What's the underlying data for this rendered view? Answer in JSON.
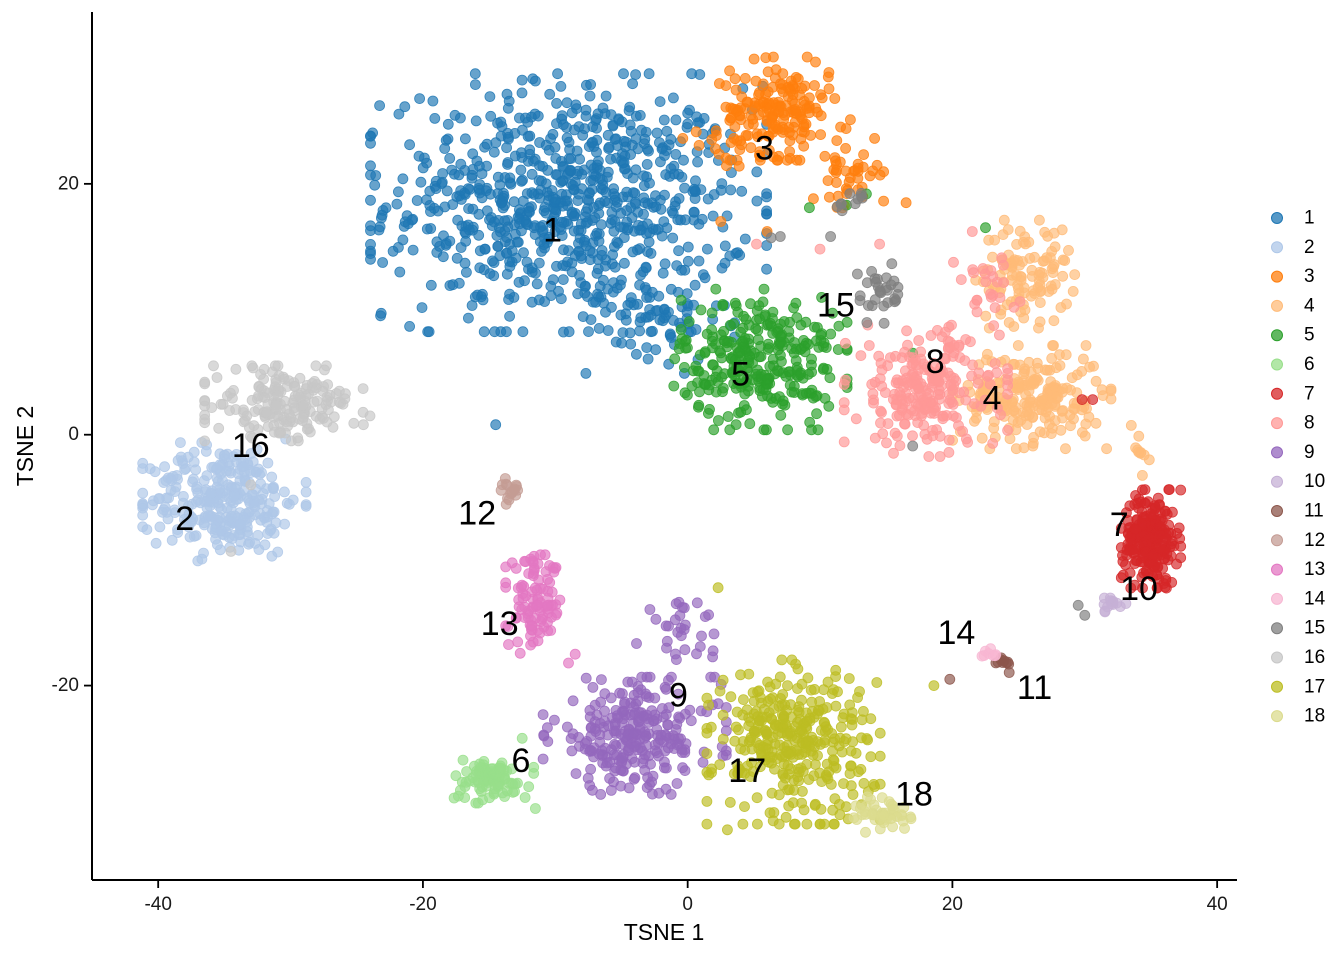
{
  "chart_data": {
    "type": "scatter",
    "xlabel": "TSNE 1",
    "ylabel": "TSNE 2",
    "xlim": [
      -45,
      41.5
    ],
    "ylim": [
      -35.5,
      33.7
    ],
    "x_ticks": [
      -40,
      -20,
      0,
      20,
      40
    ],
    "y_ticks": [
      -20,
      0,
      20
    ],
    "x_tick_labels": [
      "-40",
      "-20",
      "0",
      "20",
      "40"
    ],
    "y_tick_labels": [
      "-20",
      "0",
      "20"
    ],
    "grid": false,
    "legend_position": "right",
    "series": [
      {
        "name": "1",
        "color": "#1f77b4",
        "blobs": [
          {
            "cx": -9,
            "cy": 18.5,
            "sx": 8,
            "sy": 5.5,
            "n": 780
          },
          {
            "cx": -3,
            "cy": 9,
            "sx": 3.5,
            "sy": 2.2,
            "n": 70
          }
        ],
        "points": [
          [
            -11.5,
            28.2
          ],
          [
            -14.5,
            0.8
          ]
        ]
      },
      {
        "name": "2",
        "color": "#aec7e8",
        "blobs": [
          {
            "cx": -35,
            "cy": -5.2,
            "sx": 3.3,
            "sy": 2.6,
            "n": 300
          }
        ],
        "points": []
      },
      {
        "name": "3",
        "color": "#ff7f0e",
        "blobs": [
          {
            "cx": 7,
            "cy": 26,
            "sx": 2.2,
            "sy": 2.2,
            "n": 170
          },
          {
            "cx": 12,
            "cy": 21,
            "sx": 1.5,
            "sy": 2.2,
            "n": 45
          },
          {
            "cx": 3,
            "cy": 23,
            "sx": 1.8,
            "sy": 1.2,
            "n": 18
          }
        ],
        "points": [
          [
            2.5,
            17.0
          ],
          [
            6.0,
            16.2
          ],
          [
            16.5,
            18.5
          ],
          [
            2.4,
            28.0
          ]
        ]
      },
      {
        "name": "4",
        "color": "#ffbb78",
        "blobs": [
          {
            "cx": 26,
            "cy": 3,
            "sx": 3.2,
            "sy": 2.2,
            "n": 220
          },
          {
            "cx": 25.5,
            "cy": 12.8,
            "sx": 2.0,
            "sy": 2.3,
            "n": 110
          },
          {
            "cx": 34,
            "cy": -1.5,
            "sx": 0.5,
            "sy": 1.2,
            "n": 10
          }
        ],
        "points": []
      },
      {
        "name": "5",
        "color": "#2ca02c",
        "blobs": [
          {
            "cx": 5.5,
            "cy": 6,
            "sx": 3.5,
            "sy": 3.0,
            "n": 300
          }
        ],
        "points": [
          [
            13.5,
            19.2
          ],
          [
            12.0,
            18.3
          ],
          [
            9.2,
            18.1
          ],
          [
            17.0,
            6.5
          ],
          [
            22.5,
            16.5
          ]
        ]
      },
      {
        "name": "6",
        "color": "#98df8a",
        "blobs": [
          {
            "cx": -15,
            "cy": -27.5,
            "sx": 1.8,
            "sy": 1.0,
            "n": 90
          }
        ],
        "points": [
          [
            -12.5,
            -24.2
          ],
          [
            -11.5,
            -29.8
          ]
        ]
      },
      {
        "name": "7",
        "color": "#d62728",
        "blobs": [
          {
            "cx": 35,
            "cy": -8.3,
            "sx": 1.2,
            "sy": 2.1,
            "n": 220
          }
        ],
        "points": [
          [
            29.8,
            2.8
          ],
          [
            30.6,
            2.8
          ]
        ]
      },
      {
        "name": "8",
        "color": "#ff9896",
        "blobs": [
          {
            "cx": 18,
            "cy": 3.5,
            "sx": 3.3,
            "sy": 2.8,
            "n": 230
          },
          {
            "cx": 22.5,
            "cy": 11.5,
            "sx": 1.4,
            "sy": 1.5,
            "n": 25
          }
        ],
        "points": [
          [
            5.2,
            15.2
          ],
          [
            10.0,
            14.8
          ],
          [
            14.5,
            15.2
          ],
          [
            21.5,
            16.2
          ]
        ]
      },
      {
        "name": "9",
        "color": "#9467bd",
        "blobs": [
          {
            "cx": -4,
            "cy": -24,
            "sx": 3.7,
            "sy": 2.5,
            "n": 260
          },
          {
            "cx": -0.5,
            "cy": -15.5,
            "sx": 1.8,
            "sy": 1.3,
            "n": 30
          }
        ],
        "points": []
      },
      {
        "name": "10",
        "color": "#c5b0d5",
        "blobs": [
          {
            "cx": 32.2,
            "cy": -13.6,
            "sx": 0.7,
            "sy": 0.6,
            "n": 14
          }
        ],
        "points": []
      },
      {
        "name": "11",
        "color": "#8c564b",
        "blobs": [
          {
            "cx": 23.8,
            "cy": -18.3,
            "sx": 0.35,
            "sy": 0.35,
            "n": 10
          }
        ],
        "points": [
          [
            19.8,
            -19.5
          ]
        ]
      },
      {
        "name": "12",
        "color": "#c49c94",
        "blobs": [
          {
            "cx": -13.5,
            "cy": -4.3,
            "sx": 0.5,
            "sy": 0.8,
            "n": 16
          }
        ],
        "points": [
          [
            -13.5,
            -5.2
          ]
        ]
      },
      {
        "name": "13",
        "color": "#e377c2",
        "blobs": [
          {
            "cx": -11.5,
            "cy": -13.5,
            "sx": 1.2,
            "sy": 2.1,
            "n": 100
          }
        ],
        "points": [
          [
            -8.5,
            -17.5
          ],
          [
            -9.0,
            -18.2
          ]
        ]
      },
      {
        "name": "14",
        "color": "#f7b6d2",
        "blobs": [
          {
            "cx": 22.7,
            "cy": -17.6,
            "sx": 0.5,
            "sy": 0.3,
            "n": 8
          }
        ],
        "points": []
      },
      {
        "name": "15",
        "color": "#7f7f7f",
        "blobs": [
          {
            "cx": 14.5,
            "cy": 11.5,
            "sx": 1.1,
            "sy": 1.4,
            "n": 30
          },
          {
            "cx": 12.5,
            "cy": 18.3,
            "sx": 0.8,
            "sy": 0.6,
            "n": 10
          }
        ],
        "points": [
          [
            7.0,
            15.8
          ],
          [
            6.3,
            15.7
          ],
          [
            10.8,
            15.8
          ],
          [
            17.0,
            -0.9
          ],
          [
            29.5,
            -13.6
          ],
          [
            30.0,
            -14.4
          ]
        ]
      },
      {
        "name": "16",
        "color": "#c7c7c7",
        "blobs": [
          {
            "cx": -30.5,
            "cy": 2.5,
            "sx": 3.2,
            "sy": 1.6,
            "n": 180
          }
        ],
        "points": [
          [
            -24.0,
            1.5
          ],
          [
            -24.5,
            0.8
          ],
          [
            -34.5,
            -9.3
          ],
          [
            -33.0,
            -4.0
          ]
        ]
      },
      {
        "name": "17",
        "color": "#bcbd22",
        "blobs": [
          {
            "cx": 8,
            "cy": -24.5,
            "sx": 3.5,
            "sy": 3.5,
            "n": 340
          }
        ],
        "points": [
          [
            2.3,
            -12.2
          ],
          [
            3.0,
            -31.5
          ],
          [
            18.6,
            -20.0
          ]
        ]
      },
      {
        "name": "18",
        "color": "#dbdb8d",
        "blobs": [
          {
            "cx": 15,
            "cy": -30.2,
            "sx": 1.3,
            "sy": 0.8,
            "n": 45
          }
        ],
        "points": []
      }
    ],
    "annotations": [
      {
        "text": "1",
        "x": -10.2,
        "y": 16.3
      },
      {
        "text": "2",
        "x": -38.0,
        "y": -6.7
      },
      {
        "text": "3",
        "x": 5.8,
        "y": 22.8
      },
      {
        "text": "4",
        "x": 23.0,
        "y": 2.9
      },
      {
        "text": "5",
        "x": 4.0,
        "y": 4.8
      },
      {
        "text": "6",
        "x": -12.6,
        "y": -26.0
      },
      {
        "text": "7",
        "x": 32.6,
        "y": -7.2
      },
      {
        "text": "8",
        "x": 18.7,
        "y": 5.8
      },
      {
        "text": "9",
        "x": -0.7,
        "y": -20.8
      },
      {
        "text": "10",
        "x": 34.1,
        "y": -12.3
      },
      {
        "text": "11",
        "x": 26.2,
        "y": -20.2
      },
      {
        "text": "12",
        "x": -15.9,
        "y": -6.3
      },
      {
        "text": "13",
        "x": -14.2,
        "y": -15.1
      },
      {
        "text": "14",
        "x": 20.3,
        "y": -15.8
      },
      {
        "text": "15",
        "x": 11.2,
        "y": 10.3
      },
      {
        "text": "16",
        "x": -33.0,
        "y": -0.9
      },
      {
        "text": "17",
        "x": 4.5,
        "y": -26.8
      },
      {
        "text": "18",
        "x": 17.1,
        "y": -28.7
      }
    ]
  }
}
